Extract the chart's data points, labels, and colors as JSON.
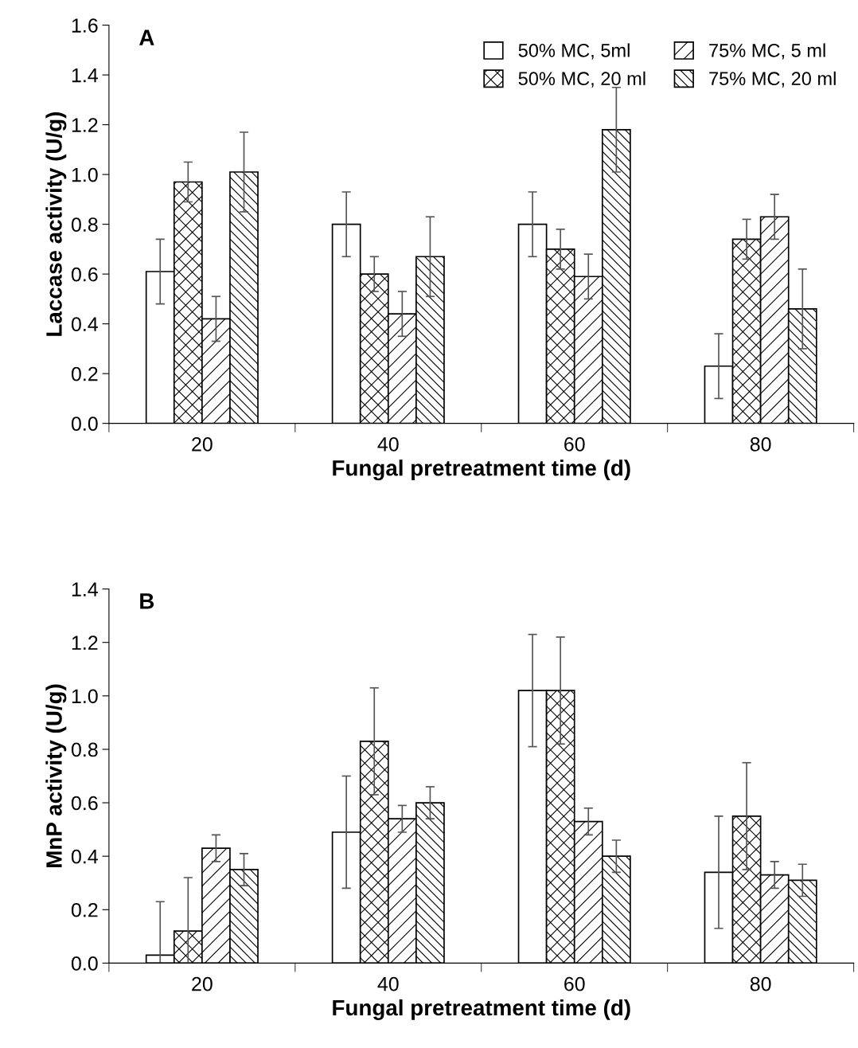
{
  "chart_data": [
    {
      "type": "bar",
      "title": "A",
      "xlabel": "Fungal pretreatment time (d)",
      "ylabel": "Laccase activity (U/g)",
      "categories": [
        "20",
        "40",
        "60",
        "80"
      ],
      "ylim": [
        0,
        1.6
      ],
      "yticks": [
        {
          "value": 0,
          "label": "0.0"
        },
        {
          "value": 0.2,
          "label": "0.2"
        },
        {
          "value": 0.4,
          "label": "0.4"
        },
        {
          "value": 0.6,
          "label": "0.6"
        },
        {
          "value": 0.8,
          "label": "0.8"
        },
        {
          "value": 1,
          "label": "1.0"
        },
        {
          "value": 1.2,
          "label": "1.2"
        },
        {
          "value": 1.4,
          "label": "1.4"
        },
        {
          "value": 1.6,
          "label": "1.6"
        }
      ],
      "grid": false,
      "legend": "top right",
      "series": [
        {
          "name": "50% MC, 5ml",
          "color": "#ffffff",
          "values": [
            0.61,
            0.8,
            0.8,
            0.23
          ],
          "errors": [
            0.13,
            0.13,
            0.13,
            0.13
          ]
        },
        {
          "name": "50% MC, 20 ml",
          "color": "#000000",
          "values": [
            0.97,
            0.6,
            0.7,
            0.74
          ],
          "errors": [
            0.08,
            0.07,
            0.08,
            0.08
          ]
        },
        {
          "name": "75% MC, 5 ml",
          "color": "#000000",
          "values": [
            0.42,
            0.44,
            0.59,
            0.83
          ],
          "errors": [
            0.09,
            0.09,
            0.09,
            0.09
          ]
        },
        {
          "name": "75% MC, 20 ml",
          "color": "#000000",
          "values": [
            1.01,
            0.67,
            1.18,
            0.46
          ],
          "errors": [
            0.16,
            0.16,
            0.17,
            0.16
          ]
        }
      ]
    },
    {
      "type": "bar",
      "title": "B",
      "xlabel": "Fungal pretreatment time (d)",
      "ylabel": "MnP activity (U/g)",
      "categories": [
        "20",
        "40",
        "60",
        "80"
      ],
      "ylim": [
        0,
        1.4
      ],
      "yticks": [
        {
          "value": 0,
          "label": "0.0"
        },
        {
          "value": 0.2,
          "label": "0.2"
        },
        {
          "value": 0.4,
          "label": "0.4"
        },
        {
          "value": 0.6,
          "label": "0.6"
        },
        {
          "value": 0.8,
          "label": "0.8"
        },
        {
          "value": 1,
          "label": "1.0"
        },
        {
          "value": 1.2,
          "label": "1.2"
        },
        {
          "value": 1.4,
          "label": "1.4"
        }
      ],
      "grid": false,
      "legend": false,
      "series": [
        {
          "color": "#ffffff",
          "values": [
            0.03,
            0.49,
            1.02,
            0.34
          ],
          "errors": [
            0.2,
            0.21,
            0.21,
            0.21
          ]
        },
        {
          "color": "#000000",
          "values": [
            0.12,
            0.83,
            1.02,
            0.55
          ],
          "errors": [
            0.2,
            0.2,
            0.2,
            0.2
          ]
        },
        {
          "color": "#000000",
          "values": [
            0.43,
            0.54,
            0.53,
            0.33
          ],
          "errors": [
            0.05,
            0.05,
            0.05,
            0.05
          ]
        },
        {
          "color": "#000000",
          "values": [
            0.35,
            0.6,
            0.4,
            0.31
          ],
          "errors": [
            0.06,
            0.06,
            0.06,
            0.06
          ]
        }
      ]
    }
  ]
}
